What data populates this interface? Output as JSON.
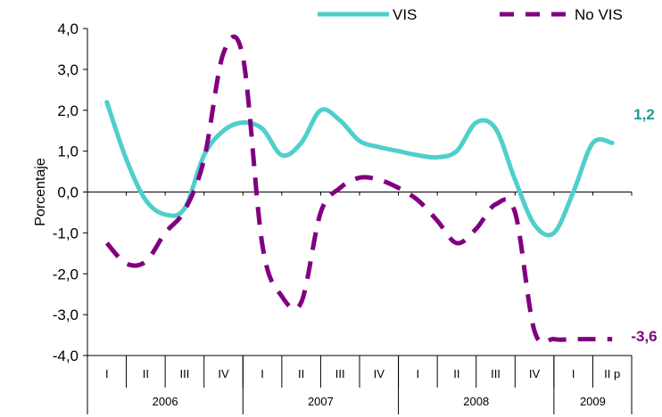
{
  "chart_data": {
    "type": "line",
    "ylabel": "Porcentaje",
    "ylim": [
      -4.0,
      4.0
    ],
    "yticks": [
      "4,0",
      "3,0",
      "2,0",
      "1,0",
      "0,0",
      "-1,0",
      "-2,0",
      "-3,0",
      "-4,0"
    ],
    "quarters": [
      "I",
      "II",
      "III",
      "IV",
      "I",
      "II",
      "III",
      "IV",
      "I",
      "II",
      "III",
      "IV",
      "I",
      "II p"
    ],
    "years": [
      {
        "label": "2006",
        "quarters": 4
      },
      {
        "label": "2007",
        "quarters": 4
      },
      {
        "label": "2008",
        "quarters": 4
      },
      {
        "label": "2009",
        "quarters": 2
      }
    ],
    "series": [
      {
        "name": "VIS",
        "color": "#4fcfcb",
        "style": "solid",
        "x": [
          0.0,
          0.5,
          1.0,
          1.5,
          2.0,
          2.5,
          3.0,
          3.5,
          4.0,
          4.5,
          5.0,
          5.5,
          6.0,
          6.5,
          7.0,
          7.5,
          8.0,
          8.5,
          9.0,
          9.5,
          10.0,
          10.5,
          11.0,
          11.5,
          12.0,
          12.5,
          13.0
        ],
        "y": [
          2.2,
          0.8,
          -0.2,
          -0.55,
          -0.4,
          0.9,
          1.5,
          1.7,
          1.55,
          0.9,
          1.2,
          2.0,
          1.75,
          1.25,
          1.1,
          1.0,
          0.9,
          0.85,
          1.0,
          1.7,
          1.55,
          0.3,
          -0.8,
          -1.0,
          0.0,
          1.2,
          1.2
        ]
      },
      {
        "name": "No VIS",
        "color": "#800080",
        "style": "dashed",
        "x": [
          0.0,
          0.5,
          1.0,
          1.5,
          2.0,
          2.5,
          3.0,
          3.5,
          4.0,
          4.5,
          5.0,
          5.5,
          6.0,
          6.5,
          7.0,
          7.5,
          8.0,
          8.5,
          9.0,
          9.5,
          10.0,
          10.5,
          11.0,
          11.5,
          12.0,
          12.5,
          13.0
        ],
        "y": [
          -1.25,
          -1.75,
          -1.7,
          -1.0,
          -0.45,
          0.8,
          3.4,
          3.3,
          -1.3,
          -2.55,
          -2.7,
          -0.5,
          0.1,
          0.35,
          0.3,
          0.1,
          -0.2,
          -0.7,
          -1.25,
          -0.9,
          -0.3,
          -0.5,
          -3.4,
          -3.6,
          -3.6,
          -3.6,
          -3.6
        ]
      }
    ],
    "end_labels": [
      {
        "series": "VIS",
        "text": "1,2",
        "color": "#1a9a96"
      },
      {
        "series": "No VIS",
        "text": "-3,6",
        "color": "#800080"
      }
    ],
    "legend": {
      "position": "top-right",
      "entries": [
        "VIS",
        "No VIS"
      ]
    },
    "grid": false
  }
}
